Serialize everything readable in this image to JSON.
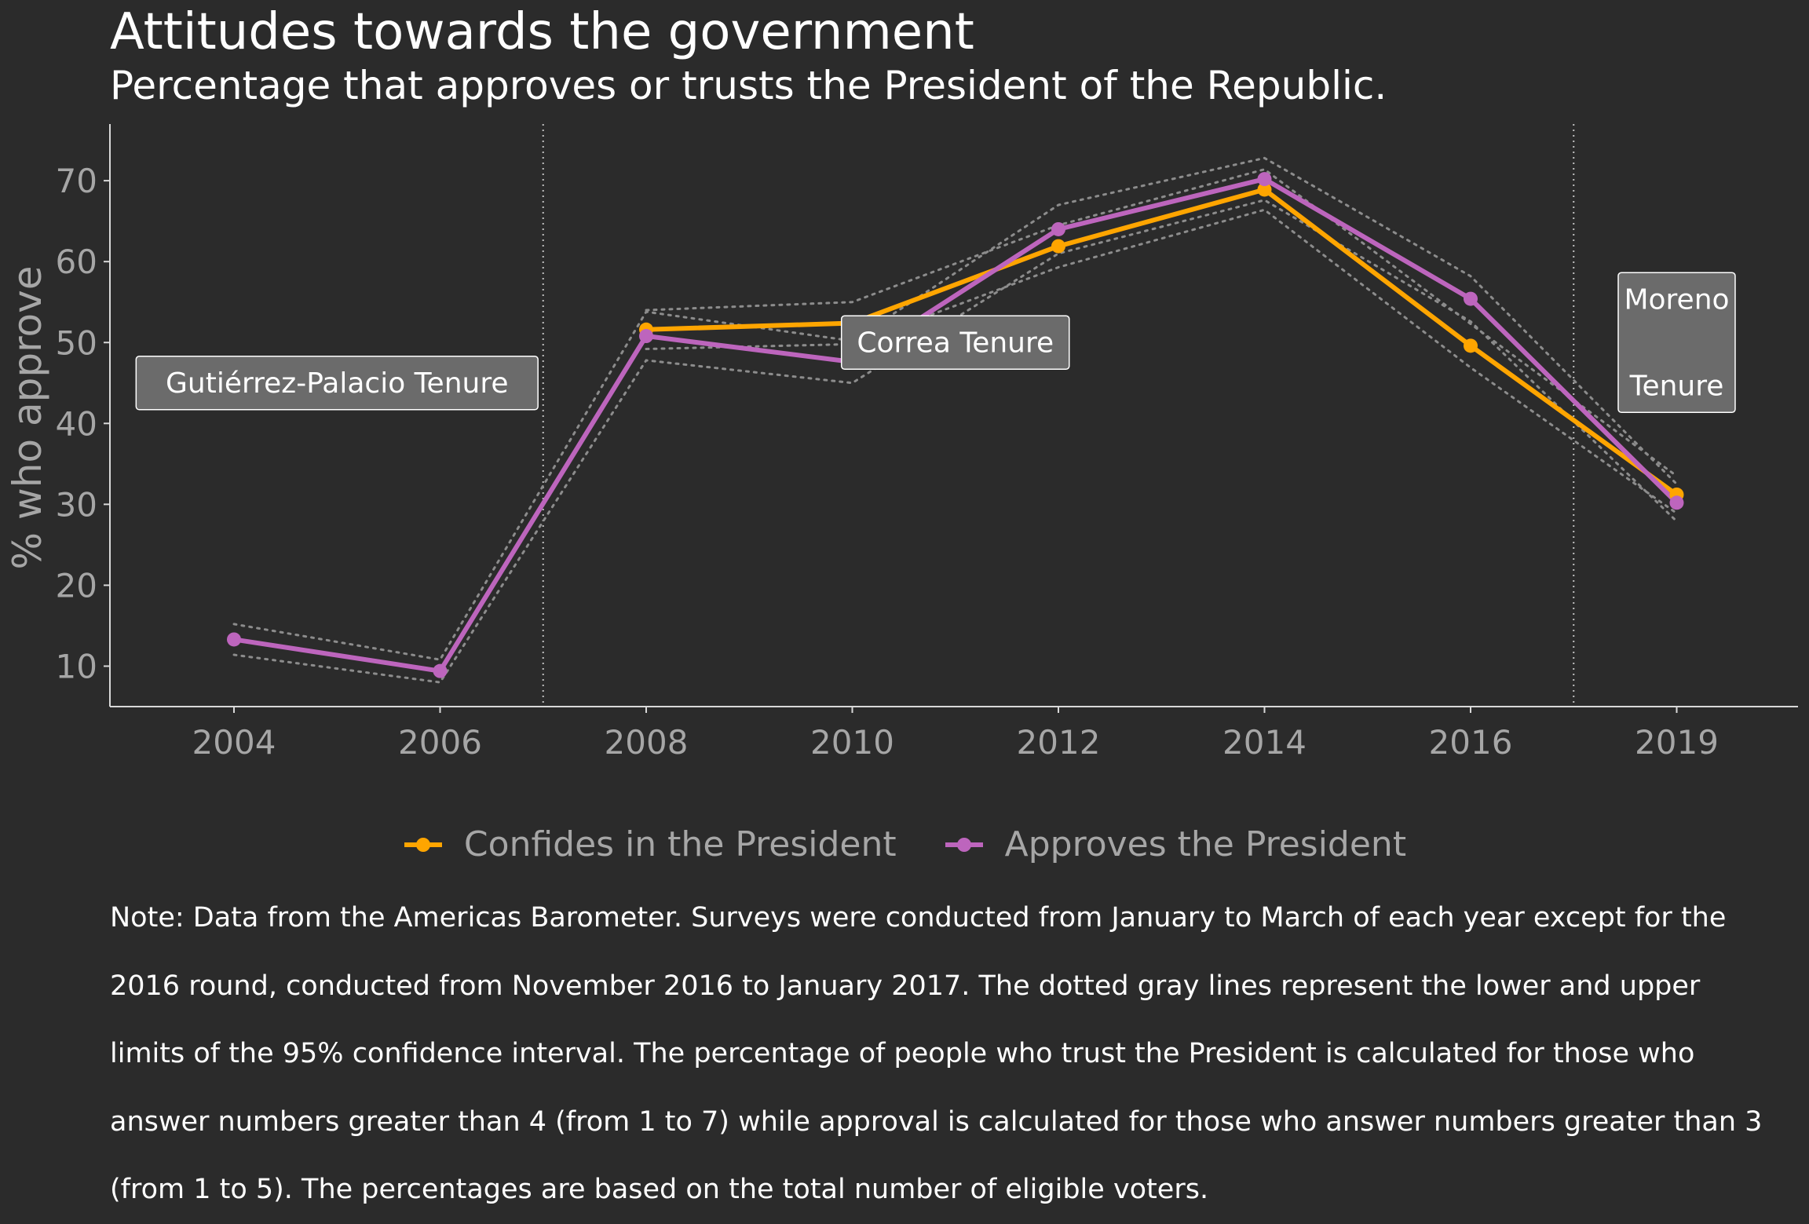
{
  "chart_data": {
    "type": "line",
    "title": "Attitudes towards the government",
    "subtitle": "Percentage that approves or trusts the President of the Republic.",
    "xlabel": "",
    "ylabel": "% who approve",
    "categories": [
      "2004",
      "2006",
      "2008",
      "2010",
      "2012",
      "2014",
      "2016",
      "2019"
    ],
    "ylim": [
      5,
      77
    ],
    "yticks": [
      10,
      20,
      30,
      40,
      50,
      60,
      70
    ],
    "grid": false,
    "legend_position": "bottom",
    "series": [
      {
        "name": "Confides in the President",
        "color": "#ffa500",
        "values": [
          null,
          null,
          51.6,
          52.4,
          61.9,
          68.9,
          49.6,
          31.2
        ],
        "ci_lower": [
          null,
          null,
          49.2,
          49.8,
          59.3,
          66.4,
          46.9,
          28.9
        ],
        "ci_upper": [
          null,
          null,
          54.0,
          55.0,
          64.5,
          71.4,
          52.3,
          33.5
        ]
      },
      {
        "name": "Approves the President",
        "color": "#bd65bd",
        "values": [
          13.3,
          9.4,
          50.8,
          47.6,
          64.0,
          70.2,
          55.4,
          30.2
        ],
        "ci_lower": [
          11.4,
          8.0,
          47.8,
          45.0,
          61.0,
          67.6,
          52.6,
          27.9
        ],
        "ci_upper": [
          15.2,
          10.8,
          53.8,
          50.2,
          67.0,
          72.8,
          58.2,
          32.5
        ]
      }
    ],
    "tenure_lines": [
      "2006/2008",
      "2016/2019"
    ],
    "annotations": [
      {
        "text": "Gutiérrez-Palacio Tenure",
        "x": "2004/2006",
        "y": 45
      },
      {
        "text": "Correa Tenure",
        "x": "2010/2012",
        "y": 50
      },
      {
        "text_lines": [
          "Moreno",
          "",
          "Tenure"
        ],
        "x": "2019",
        "y": 50
      }
    ]
  },
  "note": "Note: Data from the Americas Barometer. Surveys were conducted from January to March of each year except for the 2016 round, conducted from November 2016 to January 2017. The dotted gray lines represent the lower and upper limits of the 95% confidence interval. The percentage of people who trust the President is calculated for those who answer numbers greater than 4 (from 1 to 7) while approval is calculated for those who answer numbers greater than 3 (from 1 to 5). The percentages are based on the total number of eligible voters."
}
